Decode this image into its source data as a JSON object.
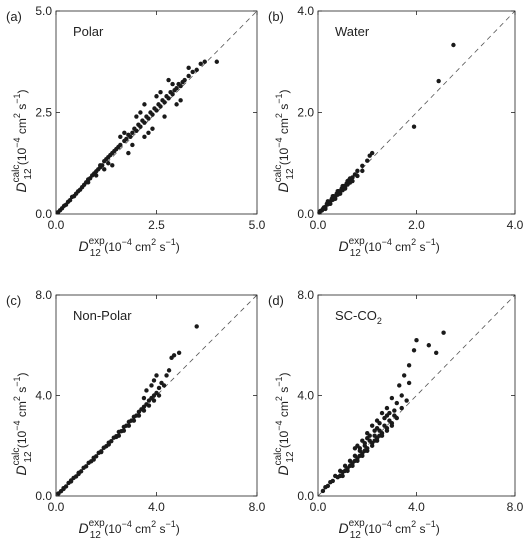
{
  "chart_data": [
    {
      "type": "scatter",
      "panel_label": "(a)",
      "annotation": "Polar",
      "xlim": [
        0,
        5.0
      ],
      "ylim": [
        0,
        5.0
      ],
      "xticks": [
        "0.0",
        "2.5",
        "5.0"
      ],
      "yticks": [
        "0.0",
        "2.5",
        "5.0"
      ],
      "xlabel": {
        "main": "D",
        "sub": "12",
        "sup": "exp",
        "units_prefix": "(10",
        "units_exp": "−4",
        "units_mid": " cm",
        "units_exp2": "2",
        "units_end": " s",
        "units_exp3": "−1",
        "units_close": ")"
      },
      "ylabel": {
        "main": "D",
        "sub": "12",
        "sup": "calc",
        "units_prefix": "(10",
        "units_exp": "−4",
        "units_mid": " cm",
        "units_exp2": "2",
        "units_end": " s",
        "units_exp3": "−1",
        "units_close": ")"
      },
      "reference_line": "y = x (dashed)",
      "points": [
        [
          0.05,
          0.04
        ],
        [
          0.1,
          0.09
        ],
        [
          0.15,
          0.14
        ],
        [
          0.2,
          0.2
        ],
        [
          0.25,
          0.23
        ],
        [
          0.3,
          0.3
        ],
        [
          0.35,
          0.34
        ],
        [
          0.4,
          0.42
        ],
        [
          0.45,
          0.44
        ],
        [
          0.5,
          0.5
        ],
        [
          0.55,
          0.56
        ],
        [
          0.6,
          0.6
        ],
        [
          0.65,
          0.66
        ],
        [
          0.7,
          0.72
        ],
        [
          0.75,
          0.78
        ],
        [
          0.8,
          0.85
        ],
        [
          0.85,
          0.88
        ],
        [
          0.9,
          0.95
        ],
        [
          0.95,
          1.0
        ],
        [
          1.0,
          1.05
        ],
        [
          1.05,
          1.1
        ],
        [
          1.1,
          1.15
        ],
        [
          1.15,
          1.2
        ],
        [
          1.2,
          1.3
        ],
        [
          1.25,
          1.35
        ],
        [
          1.3,
          1.4
        ],
        [
          1.35,
          1.45
        ],
        [
          1.4,
          1.5
        ],
        [
          1.45,
          1.55
        ],
        [
          1.5,
          1.6
        ],
        [
          1.55,
          1.65
        ],
        [
          1.6,
          1.7
        ],
        [
          1.7,
          1.8
        ],
        [
          1.75,
          1.85
        ],
        [
          1.8,
          1.95
        ],
        [
          1.85,
          1.9
        ],
        [
          1.9,
          2.0
        ],
        [
          1.95,
          2.1
        ],
        [
          2.0,
          2.05
        ],
        [
          2.05,
          2.2
        ],
        [
          2.1,
          2.15
        ],
        [
          2.15,
          2.3
        ],
        [
          2.2,
          2.25
        ],
        [
          2.25,
          2.4
        ],
        [
          2.3,
          2.35
        ],
        [
          2.35,
          2.5
        ],
        [
          2.4,
          2.45
        ],
        [
          2.45,
          2.6
        ],
        [
          2.5,
          2.55
        ],
        [
          2.55,
          2.7
        ],
        [
          2.6,
          2.65
        ],
        [
          2.65,
          2.8
        ],
        [
          2.7,
          2.75
        ],
        [
          2.75,
          2.9
        ],
        [
          2.8,
          2.85
        ],
        [
          2.85,
          3.0
        ],
        [
          2.9,
          2.95
        ],
        [
          2.95,
          3.05
        ],
        [
          3.0,
          3.1
        ],
        [
          3.05,
          3.2
        ],
        [
          3.1,
          3.15
        ],
        [
          3.15,
          3.25
        ],
        [
          3.2,
          3.3
        ],
        [
          3.3,
          3.4
        ],
        [
          3.4,
          3.5
        ],
        [
          3.5,
          3.55
        ],
        [
          3.6,
          3.7
        ],
        [
          3.7,
          3.75
        ],
        [
          4.0,
          3.75
        ],
        [
          1.6,
          1.9
        ],
        [
          1.9,
          1.7
        ],
        [
          2.1,
          2.5
        ],
        [
          2.3,
          2.0
        ],
        [
          2.5,
          2.9
        ],
        [
          2.7,
          2.4
        ],
        [
          2.9,
          3.2
        ],
        [
          3.1,
          2.8
        ],
        [
          3.3,
          3.6
        ],
        [
          1.4,
          1.2
        ],
        [
          1.2,
          1.1
        ],
        [
          2.0,
          2.4
        ],
        [
          2.4,
          2.1
        ],
        [
          2.6,
          3.0
        ],
        [
          1.7,
          2.0
        ],
        [
          2.2,
          1.9
        ],
        [
          0.8,
          0.78
        ],
        [
          1.0,
          0.95
        ],
        [
          1.1,
          1.2
        ],
        [
          1.3,
          1.25
        ],
        [
          2.8,
          3.3
        ],
        [
          3.0,
          2.7
        ],
        [
          2.2,
          2.7
        ],
        [
          1.8,
          1.5
        ]
      ]
    },
    {
      "type": "scatter",
      "panel_label": "(b)",
      "annotation": "Water",
      "xlim": [
        0,
        4.0
      ],
      "ylim": [
        0,
        4.0
      ],
      "xticks": [
        "0.0",
        "2.0",
        "4.0"
      ],
      "yticks": [
        "0.0",
        "2.0",
        "4.0"
      ],
      "xlabel": {
        "main": "D",
        "sub": "12",
        "sup": "exp",
        "units_prefix": "(10",
        "units_exp": "−4",
        "units_mid": " cm",
        "units_exp2": "2",
        "units_end": " s",
        "units_exp3": "−1",
        "units_close": ")"
      },
      "ylabel": {
        "main": "D",
        "sub": "12",
        "sup": "calc",
        "units_prefix": "(10",
        "units_exp": "−4",
        "units_mid": " cm",
        "units_exp2": "2",
        "units_end": " s",
        "units_exp3": "−1",
        "units_close": ")"
      },
      "reference_line": "y = x (dashed)",
      "points": [
        [
          0.03,
          0.03
        ],
        [
          0.05,
          0.06
        ],
        [
          0.08,
          0.07
        ],
        [
          0.1,
          0.1
        ],
        [
          0.12,
          0.13
        ],
        [
          0.15,
          0.14
        ],
        [
          0.18,
          0.2
        ],
        [
          0.2,
          0.19
        ],
        [
          0.22,
          0.24
        ],
        [
          0.25,
          0.25
        ],
        [
          0.28,
          0.3
        ],
        [
          0.3,
          0.28
        ],
        [
          0.32,
          0.35
        ],
        [
          0.35,
          0.34
        ],
        [
          0.38,
          0.4
        ],
        [
          0.4,
          0.38
        ],
        [
          0.42,
          0.45
        ],
        [
          0.45,
          0.44
        ],
        [
          0.48,
          0.5
        ],
        [
          0.5,
          0.47
        ],
        [
          0.52,
          0.55
        ],
        [
          0.55,
          0.52
        ],
        [
          0.58,
          0.6
        ],
        [
          0.6,
          0.58
        ],
        [
          0.62,
          0.66
        ],
        [
          0.65,
          0.62
        ],
        [
          0.7,
          0.72
        ],
        [
          0.75,
          0.78
        ],
        [
          0.8,
          0.85
        ],
        [
          0.9,
          0.95
        ],
        [
          1.0,
          1.05
        ],
        [
          1.05,
          1.15
        ],
        [
          1.1,
          1.2
        ],
        [
          1.95,
          1.72
        ],
        [
          2.45,
          2.62
        ],
        [
          2.75,
          3.33
        ],
        [
          0.2,
          0.25
        ],
        [
          0.3,
          0.35
        ],
        [
          0.4,
          0.45
        ],
        [
          0.5,
          0.55
        ],
        [
          0.15,
          0.1
        ],
        [
          0.25,
          0.2
        ],
        [
          0.35,
          0.3
        ],
        [
          0.45,
          0.4
        ],
        [
          0.55,
          0.5
        ],
        [
          0.6,
          0.65
        ],
        [
          0.65,
          0.7
        ],
        [
          0.7,
          0.65
        ],
        [
          0.8,
          0.75
        ],
        [
          0.9,
          0.85
        ]
      ]
    },
    {
      "type": "scatter",
      "panel_label": "(c)",
      "annotation": "Non-Polar",
      "xlim": [
        0,
        8.0
      ],
      "ylim": [
        0,
        8.0
      ],
      "xticks": [
        "0.0",
        "4.0",
        "8.0"
      ],
      "yticks": [
        "0.0",
        "4.0",
        "8.0"
      ],
      "xlabel": {
        "main": "D",
        "sub": "12",
        "sup": "exp",
        "units_prefix": "(10",
        "units_exp": "−4",
        "units_mid": " cm",
        "units_exp2": "2",
        "units_end": " s",
        "units_exp3": "−1",
        "units_close": ")"
      },
      "ylabel": {
        "main": "D",
        "sub": "12",
        "sup": "calc",
        "units_prefix": "(10",
        "units_exp": "−4",
        "units_mid": " cm",
        "units_exp2": "2",
        "units_end": " s",
        "units_exp3": "−1",
        "units_close": ")"
      },
      "reference_line": "y = x (dashed)",
      "points": [
        [
          0.1,
          0.1
        ],
        [
          0.2,
          0.19
        ],
        [
          0.3,
          0.31
        ],
        [
          0.4,
          0.38
        ],
        [
          0.5,
          0.52
        ],
        [
          0.6,
          0.58
        ],
        [
          0.7,
          0.72
        ],
        [
          0.8,
          0.78
        ],
        [
          0.9,
          0.92
        ],
        [
          1.0,
          0.98
        ],
        [
          1.1,
          1.12
        ],
        [
          1.2,
          1.18
        ],
        [
          1.3,
          1.32
        ],
        [
          1.4,
          1.38
        ],
        [
          1.5,
          1.52
        ],
        [
          1.6,
          1.58
        ],
        [
          1.7,
          1.72
        ],
        [
          1.8,
          1.78
        ],
        [
          1.9,
          1.92
        ],
        [
          2.0,
          1.98
        ],
        [
          2.1,
          2.12
        ],
        [
          2.2,
          2.18
        ],
        [
          2.3,
          2.32
        ],
        [
          2.4,
          2.38
        ],
        [
          2.5,
          2.55
        ],
        [
          2.6,
          2.58
        ],
        [
          2.7,
          2.75
        ],
        [
          2.8,
          2.8
        ],
        [
          2.9,
          2.95
        ],
        [
          3.0,
          3.0
        ],
        [
          3.1,
          3.15
        ],
        [
          3.2,
          3.2
        ],
        [
          3.3,
          3.35
        ],
        [
          3.4,
          3.45
        ],
        [
          3.5,
          3.55
        ],
        [
          3.6,
          3.65
        ],
        [
          3.7,
          3.8
        ],
        [
          3.8,
          3.9
        ],
        [
          3.9,
          4.0
        ],
        [
          4.0,
          4.1
        ],
        [
          4.1,
          4.3
        ],
        [
          4.2,
          4.5
        ],
        [
          4.3,
          4.4
        ],
        [
          4.4,
          4.8
        ],
        [
          4.5,
          5.0
        ],
        [
          4.6,
          5.5
        ],
        [
          4.7,
          5.6
        ],
        [
          4.9,
          5.7
        ],
        [
          5.6,
          6.75
        ],
        [
          3.5,
          3.9
        ],
        [
          3.6,
          4.2
        ],
        [
          3.8,
          4.4
        ],
        [
          3.9,
          4.6
        ],
        [
          4.0,
          4.8
        ],
        [
          2.5,
          2.4
        ],
        [
          2.7,
          2.6
        ],
        [
          2.9,
          2.8
        ],
        [
          3.1,
          3.0
        ],
        [
          3.3,
          3.2
        ],
        [
          3.5,
          3.4
        ],
        [
          3.7,
          3.6
        ],
        [
          3.9,
          3.8
        ],
        [
          4.1,
          4.0
        ],
        [
          1.5,
          1.45
        ],
        [
          1.8,
          1.75
        ],
        [
          2.1,
          2.05
        ],
        [
          2.4,
          2.35
        ],
        [
          0.3,
          0.28
        ],
        [
          0.6,
          0.62
        ],
        [
          0.9,
          0.88
        ]
      ]
    },
    {
      "type": "scatter",
      "panel_label": "(d)",
      "annotation": "SC-CO",
      "annotation_sub": "2",
      "xlim": [
        0,
        8.0
      ],
      "ylim": [
        0,
        8.0
      ],
      "xticks": [
        "0.0",
        "4.0",
        "8.0"
      ],
      "yticks": [
        "0.0",
        "4.0",
        "8.0"
      ],
      "xlabel": {
        "main": "D",
        "sub": "12",
        "sup": "exp",
        "units_prefix": "(10",
        "units_exp": "−4",
        "units_mid": " cm",
        "units_exp2": "2",
        "units_end": " s",
        "units_exp3": "−1",
        "units_close": ")"
      },
      "ylabel": {
        "main": "D",
        "sub": "12",
        "sup": "calc",
        "units_prefix": "(10",
        "units_exp": "−4",
        "units_mid": " cm",
        "units_exp2": "2",
        "units_end": " s",
        "units_exp3": "−1",
        "units_close": ")"
      },
      "reference_line": "y = x (dashed)",
      "points": [
        [
          0.2,
          0.2
        ],
        [
          0.3,
          0.35
        ],
        [
          0.4,
          0.4
        ],
        [
          0.5,
          0.55
        ],
        [
          0.6,
          0.6
        ],
        [
          0.7,
          0.8
        ],
        [
          0.8,
          0.75
        ],
        [
          0.9,
          1.0
        ],
        [
          1.0,
          0.95
        ],
        [
          1.1,
          1.2
        ],
        [
          1.2,
          1.1
        ],
        [
          1.3,
          1.4
        ],
        [
          1.4,
          1.3
        ],
        [
          1.5,
          1.6
        ],
        [
          1.6,
          1.5
        ],
        [
          1.7,
          1.8
        ],
        [
          1.8,
          1.7
        ],
        [
          1.9,
          2.0
        ],
        [
          2.0,
          1.9
        ],
        [
          2.1,
          2.2
        ],
        [
          2.2,
          2.1
        ],
        [
          2.3,
          2.4
        ],
        [
          2.4,
          2.3
        ],
        [
          2.5,
          2.6
        ],
        [
          2.6,
          2.5
        ],
        [
          2.7,
          2.8
        ],
        [
          2.8,
          2.7
        ],
        [
          2.9,
          3.0
        ],
        [
          3.0,
          2.9
        ],
        [
          3.1,
          3.2
        ],
        [
          3.2,
          3.1
        ],
        [
          3.4,
          3.5
        ],
        [
          3.6,
          3.8
        ],
        [
          1.5,
          1.9
        ],
        [
          1.8,
          2.2
        ],
        [
          2.0,
          2.5
        ],
        [
          2.2,
          2.8
        ],
        [
          2.4,
          3.0
        ],
        [
          2.6,
          3.3
        ],
        [
          2.8,
          3.5
        ],
        [
          3.0,
          3.9
        ],
        [
          3.3,
          4.4
        ],
        [
          3.5,
          4.8
        ],
        [
          3.7,
          5.2
        ],
        [
          3.9,
          5.8
        ],
        [
          4.0,
          6.2
        ],
        [
          3.7,
          4.5
        ],
        [
          4.5,
          6.0
        ],
        [
          4.8,
          5.7
        ],
        [
          5.1,
          6.5
        ],
        [
          1.0,
          0.8
        ],
        [
          1.2,
          1.0
        ],
        [
          1.4,
          1.2
        ],
        [
          1.6,
          1.4
        ],
        [
          1.8,
          1.6
        ],
        [
          2.0,
          1.8
        ],
        [
          2.2,
          2.0
        ],
        [
          2.4,
          2.2
        ],
        [
          2.6,
          2.4
        ],
        [
          2.8,
          2.6
        ],
        [
          3.0,
          2.8
        ],
        [
          1.5,
          1.4
        ],
        [
          1.7,
          1.9
        ],
        [
          1.9,
          2.1
        ],
        [
          2.1,
          2.4
        ],
        [
          2.3,
          2.6
        ],
        [
          2.5,
          2.9
        ],
        [
          2.7,
          3.1
        ],
        [
          0.9,
          0.8
        ],
        [
          1.1,
          1.0
        ],
        [
          1.3,
          1.2
        ],
        [
          1.7,
          1.6
        ],
        [
          1.9,
          1.8
        ],
        [
          2.3,
          2.2
        ],
        [
          2.5,
          2.4
        ],
        [
          1.6,
          2.0
        ],
        [
          2.0,
          2.3
        ],
        [
          2.4,
          2.7
        ],
        [
          2.8,
          3.2
        ],
        [
          3.2,
          3.7
        ],
        [
          3.4,
          4.0
        ],
        [
          3.1,
          3.4
        ],
        [
          2.9,
          3.3
        ]
      ]
    }
  ]
}
